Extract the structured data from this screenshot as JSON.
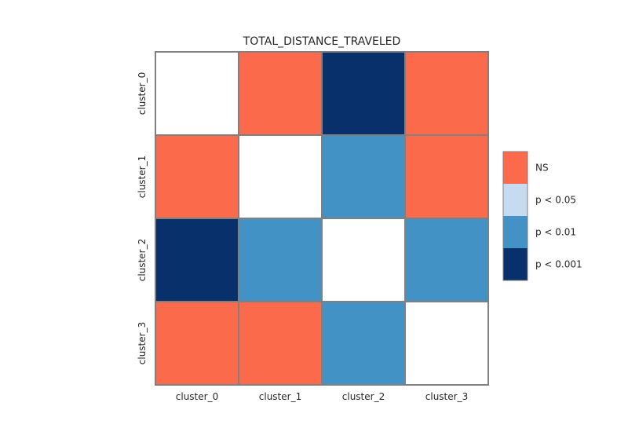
{
  "chart_data": {
    "type": "heatmap",
    "title": "TOTAL_DISTANCE_TRAVELED",
    "rows": [
      "cluster_0",
      "cluster_1",
      "cluster_2",
      "cluster_3"
    ],
    "columns": [
      "cluster_0",
      "cluster_1",
      "cluster_2",
      "cluster_3"
    ],
    "matrix": [
      [
        "diag",
        "NS",
        "p < 0.001",
        "NS"
      ],
      [
        "NS",
        "diag",
        "p < 0.01",
        "NS"
      ],
      [
        "p < 0.001",
        "p < 0.01",
        "diag",
        "p < 0.01"
      ],
      [
        "NS",
        "NS",
        "p < 0.01",
        "diag"
      ]
    ],
    "legend": [
      {
        "label": "NS",
        "color": "#fb6a4a"
      },
      {
        "label": "p < 0.05",
        "color": "#c6dbef"
      },
      {
        "label": "p < 0.01",
        "color": "#4292c6"
      },
      {
        "label": "p < 0.001",
        "color": "#08306b"
      }
    ],
    "diagonal_color": "#ffffff",
    "grid_line_color": "#808080",
    "legend_position": "right"
  }
}
